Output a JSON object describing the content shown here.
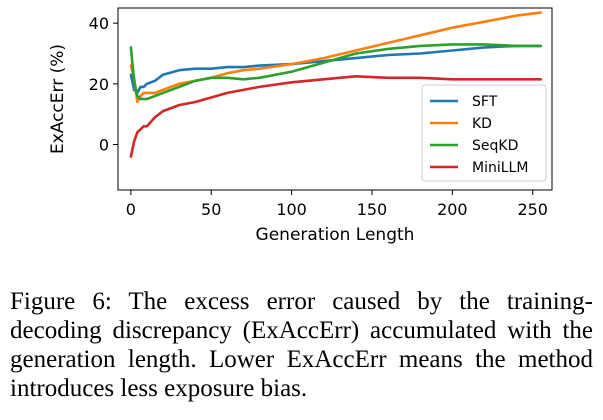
{
  "chart_data": {
    "type": "line",
    "xlabel": "Generation Length",
    "ylabel": "ExAccErr (%)",
    "xlim": [
      -8,
      262
    ],
    "ylim": [
      -15,
      45
    ],
    "xticks": [
      0,
      50,
      100,
      150,
      200,
      250
    ],
    "yticks": [
      0,
      20,
      40
    ],
    "grid": false,
    "legend_position": "lower-right",
    "series": [
      {
        "name": "SFT",
        "color": "#1f77b4",
        "x": [
          0,
          2,
          4,
          6,
          8,
          10,
          15,
          20,
          30,
          40,
          50,
          60,
          70,
          80,
          100,
          120,
          140,
          160,
          180,
          200,
          220,
          240,
          255
        ],
        "y": [
          23,
          18,
          17,
          19,
          19,
          20,
          21,
          23,
          24.5,
          25,
          25,
          25.5,
          25.5,
          26,
          26.5,
          27.5,
          28.5,
          29.5,
          30,
          31,
          32,
          32.5,
          32.5
        ]
      },
      {
        "name": "KD",
        "color": "#ff7f0e",
        "x": [
          0,
          2,
          4,
          6,
          8,
          10,
          15,
          20,
          30,
          40,
          50,
          60,
          70,
          80,
          100,
          120,
          140,
          160,
          180,
          200,
          220,
          240,
          255
        ],
        "y": [
          26,
          22,
          14,
          16,
          17,
          17,
          17,
          18,
          20,
          21,
          22,
          23.5,
          24.5,
          25,
          26.5,
          28.5,
          31,
          33.5,
          36,
          38.5,
          40.5,
          42.5,
          43.5
        ]
      },
      {
        "name": "SeqKD",
        "color": "#2ca02c",
        "x": [
          0,
          2,
          4,
          6,
          8,
          10,
          15,
          20,
          30,
          40,
          50,
          60,
          70,
          80,
          100,
          120,
          140,
          160,
          180,
          200,
          220,
          240,
          255
        ],
        "y": [
          32,
          21,
          16,
          15,
          15,
          15,
          16,
          17,
          19,
          21,
          22,
          22,
          21.5,
          22,
          24,
          27,
          30,
          31.5,
          32.5,
          33,
          33,
          32.5,
          32.5
        ]
      },
      {
        "name": "MiniLLM",
        "color": "#d62728",
        "x": [
          0,
          2,
          4,
          6,
          8,
          10,
          15,
          20,
          30,
          40,
          50,
          60,
          70,
          80,
          100,
          120,
          140,
          160,
          180,
          200,
          220,
          240,
          255
        ],
        "y": [
          -4,
          1,
          4,
          5,
          6,
          6,
          9,
          11,
          13,
          14,
          15.5,
          17,
          18,
          19,
          20.5,
          21.5,
          22.5,
          22,
          22,
          21.5,
          21.5,
          21.5,
          21.5
        ]
      }
    ]
  },
  "caption": "Figure 6: The excess error caused by the training-decoding discrepancy (ExAccErr) accumulated with the generation length. Lower ExAccErr means the method introduces less exposure bias."
}
